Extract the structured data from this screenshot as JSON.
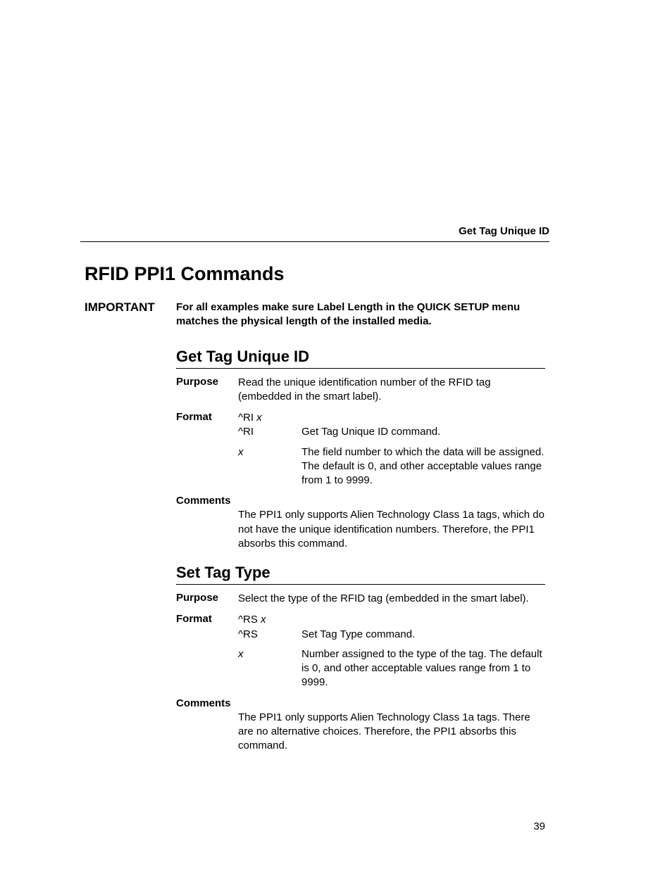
{
  "running_head": "Get Tag Unique ID",
  "main_title": "RFID PPI1 Commands",
  "important": {
    "label": "IMPORTANT",
    "text": "For all examples make sure Label Length in the QUICK SETUP menu matches the physical length of the installed media."
  },
  "sections": [
    {
      "title": "Get Tag Unique ID",
      "purpose_label": "Purpose",
      "purpose": "Read the unique identification number of the RFID tag (embedded in the smart label).",
      "format_label": "Format",
      "format_syntax_cmd": "^RI ",
      "format_syntax_arg": "x",
      "params": [
        {
          "key": "^RI",
          "key_italic": false,
          "val": "Get Tag Unique ID command."
        },
        {
          "key": "x",
          "key_italic": true,
          "val": "The field number to which the data will be assigned. The default is 0, and other acceptable values range from 1 to 9999."
        }
      ],
      "comments_label": "Comments",
      "comments": "The PPI1 only supports Alien Technology Class 1a tags, which do not have the unique identification numbers. Therefore, the PPI1 absorbs this command."
    },
    {
      "title": "Set Tag Type",
      "purpose_label": "Purpose",
      "purpose": "Select the type of the RFID tag (embedded in the smart label).",
      "format_label": "Format",
      "format_syntax_cmd": "^RS ",
      "format_syntax_arg": "x",
      "params": [
        {
          "key": "^RS",
          "key_italic": false,
          "val": "Set Tag Type command."
        },
        {
          "key": "x",
          "key_italic": true,
          "val": "Number assigned to the type of the tag. The default is 0, and other acceptable values range from 1 to 9999."
        }
      ],
      "comments_label": "Comments",
      "comments": "The PPI1 only supports Alien Technology Class 1a tags. There are no alternative choices. Therefore, the PPI1 absorbs this command."
    }
  ],
  "page_number": "39"
}
